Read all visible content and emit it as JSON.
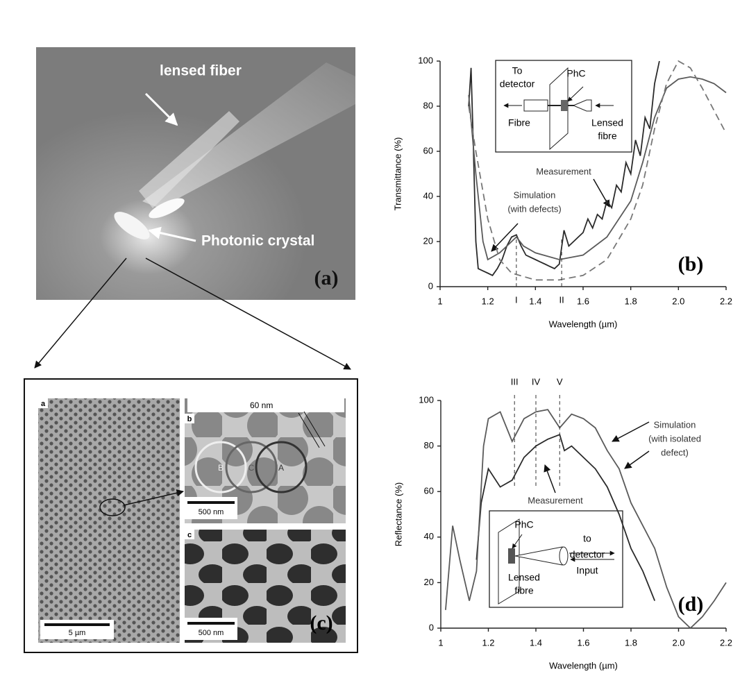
{
  "figure": {
    "photo_a": {
      "labels": [
        "lensed fiber",
        "Photonic crystal"
      ],
      "panel": "(a)"
    },
    "sem_c": {
      "panels": [
        "a",
        "b",
        "c"
      ],
      "scales": [
        "5 µm",
        "500 nm",
        "500 nm"
      ],
      "width_label": "60 nm",
      "circles": [
        "B",
        "C",
        "A"
      ],
      "panel": "(c)"
    }
  },
  "chart_data": [
    {
      "type": "line",
      "panel_label": "(b)",
      "x_label": "Wavelength (µm)",
      "y_label": "Transmittance (%)",
      "xlim": [
        1,
        2.2
      ],
      "xticks": [
        1,
        1.2,
        1.4,
        1.6,
        1.8,
        {
          "value": 2,
          "label": "2.0"
        },
        2.2
      ],
      "ylim": [
        0,
        100
      ],
      "yticks": [
        0,
        20,
        40,
        60,
        80,
        100
      ],
      "markers": [
        {
          "label": "I",
          "x": 1.32
        },
        {
          "label": "II",
          "x": 1.51
        }
      ],
      "annotations": [
        "Measurement",
        "Simulation",
        "(with defects)"
      ],
      "inset": [
        "To",
        "detector",
        "PhC",
        "Fibre",
        "Lensed",
        "fibre"
      ],
      "series": [
        {
          "color": "#2a2a2a",
          "dash": false,
          "x": [
            1.12,
            1.13,
            1.14,
            1.15,
            1.16,
            1.18,
            1.2,
            1.22,
            1.24,
            1.26,
            1.28,
            1.3,
            1.32,
            1.34,
            1.36,
            1.38,
            1.4,
            1.42,
            1.44,
            1.46,
            1.48,
            1.5,
            1.52,
            1.54,
            1.56,
            1.58,
            1.6,
            1.62,
            1.64,
            1.66,
            1.68,
            1.7,
            1.72,
            1.74,
            1.76,
            1.78,
            1.8,
            1.82,
            1.84,
            1.86,
            1.88,
            1.9,
            1.92
          ],
          "values": [
            80,
            97,
            60,
            20,
            8,
            7,
            6,
            5,
            8,
            12,
            18,
            22,
            23,
            18,
            14,
            13,
            12,
            11,
            10,
            9,
            8,
            10,
            25,
            18,
            20,
            22,
            24,
            30,
            26,
            32,
            30,
            38,
            35,
            45,
            42,
            55,
            50,
            65,
            58,
            75,
            70,
            90,
            100
          ]
        },
        {
          "color": "#5a5a5a",
          "dash": false,
          "x": [
            1.12,
            1.15,
            1.18,
            1.2,
            1.25,
            1.3,
            1.32,
            1.35,
            1.4,
            1.5,
            1.6,
            1.7,
            1.8,
            1.85,
            1.9,
            1.95,
            2.0,
            2.05,
            2.1,
            2.15,
            2.2
          ],
          "values": [
            85,
            50,
            20,
            12,
            15,
            20,
            22,
            18,
            15,
            12,
            14,
            22,
            38,
            55,
            75,
            88,
            92,
            93,
            92,
            90,
            86
          ]
        },
        {
          "color": "#777777",
          "dash": true,
          "x": [
            1.12,
            1.15,
            1.2,
            1.25,
            1.3,
            1.4,
            1.5,
            1.6,
            1.7,
            1.8,
            1.85,
            1.9,
            1.95,
            2.0,
            2.05,
            2.1,
            2.15,
            2.2
          ],
          "values": [
            80,
            60,
            30,
            12,
            6,
            3,
            3,
            5,
            12,
            30,
            45,
            70,
            90,
            100,
            97,
            88,
            78,
            68
          ]
        }
      ]
    },
    {
      "type": "line",
      "panel_label": "(d)",
      "x_label": "Wavelength (µm)",
      "y_label": "Reflectance (%)",
      "xlim": [
        1,
        2.2
      ],
      "xticks": [
        1,
        1.2,
        1.4,
        1.6,
        1.8,
        {
          "value": 2,
          "label": "2.0"
        },
        2.2
      ],
      "ylim": [
        0,
        100
      ],
      "yticks": [
        0,
        20,
        40,
        60,
        80,
        100
      ],
      "markers": [
        {
          "label": "III",
          "x": 1.31
        },
        {
          "label": "IV",
          "x": 1.4
        },
        {
          "label": "V",
          "x": 1.5
        }
      ],
      "annotations": [
        "Measurement",
        "Simulation",
        "(with isolated",
        "defect)"
      ],
      "inset": [
        "PhC",
        "to",
        "detector",
        "Lensed",
        "fibre",
        "Input"
      ],
      "series": [
        {
          "color": "#2a2a2a",
          "dash": false,
          "x": [
            1.15,
            1.17,
            1.2,
            1.25,
            1.3,
            1.35,
            1.4,
            1.45,
            1.5,
            1.52,
            1.55,
            1.6,
            1.65,
            1.7,
            1.75,
            1.8,
            1.85,
            1.9
          ],
          "values": [
            30,
            55,
            70,
            62,
            65,
            75,
            80,
            83,
            85,
            78,
            80,
            75,
            70,
            62,
            50,
            35,
            25,
            12
          ]
        },
        {
          "color": "#5a5a5a",
          "dash": false,
          "x": [
            1.02,
            1.05,
            1.08,
            1.12,
            1.15,
            1.18,
            1.2,
            1.25,
            1.3,
            1.35,
            1.4,
            1.45,
            1.5,
            1.55,
            1.6,
            1.65,
            1.7,
            1.75,
            1.8,
            1.85,
            1.9,
            1.95,
            2.0,
            2.05,
            2.1,
            2.15,
            2.2
          ],
          "values": [
            8,
            45,
            30,
            12,
            25,
            80,
            92,
            95,
            82,
            92,
            95,
            96,
            88,
            94,
            92,
            88,
            78,
            70,
            55,
            45,
            35,
            18,
            5,
            0,
            5,
            12,
            20
          ]
        }
      ]
    }
  ]
}
